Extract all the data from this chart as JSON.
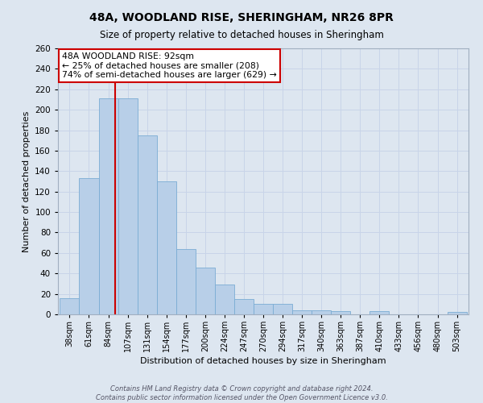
{
  "title": "48A, WOODLAND RISE, SHERINGHAM, NR26 8PR",
  "subtitle": "Size of property relative to detached houses in Sheringham",
  "xlabel": "Distribution of detached houses by size in Sheringham",
  "ylabel": "Number of detached properties",
  "bin_labels": [
    "38sqm",
    "61sqm",
    "84sqm",
    "107sqm",
    "131sqm",
    "154sqm",
    "177sqm",
    "200sqm",
    "224sqm",
    "247sqm",
    "270sqm",
    "294sqm",
    "317sqm",
    "340sqm",
    "363sqm",
    "387sqm",
    "410sqm",
    "433sqm",
    "456sqm",
    "480sqm",
    "503sqm"
  ],
  "values": [
    16,
    133,
    211,
    211,
    175,
    130,
    64,
    46,
    29,
    15,
    10,
    10,
    4,
    4,
    3,
    0,
    3,
    0,
    0,
    0,
    2
  ],
  "bar_color": "#b8cfe8",
  "bar_edge_color": "#7aacd4",
  "vline_color": "#cc0000",
  "annotation_line1": "48A WOODLAND RISE: 92sqm",
  "annotation_line2": "← 25% of detached houses are smaller (208)",
  "annotation_line3": "74% of semi-detached houses are larger (629) →",
  "annotation_box_facecolor": "#ffffff",
  "annotation_box_edgecolor": "#cc0000",
  "ylim": [
    0,
    260
  ],
  "yticks": [
    0,
    20,
    40,
    60,
    80,
    100,
    120,
    140,
    160,
    180,
    200,
    220,
    240,
    260
  ],
  "grid_color": "#c8d4e8",
  "bg_color": "#dde6f0",
  "footer1": "Contains HM Land Registry data © Crown copyright and database right 2024.",
  "footer2": "Contains public sector information licensed under the Open Government Licence v3.0."
}
